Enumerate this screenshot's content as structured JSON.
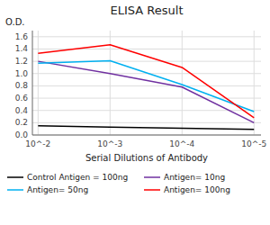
{
  "chart_data": {
    "type": "line",
    "title": "ELISA Result",
    "y_label": "O.D.",
    "x_label": "Serial Dilutions of Antibody",
    "x": [
      0.01,
      0.001,
      0.0001,
      1e-05
    ],
    "series": [
      {
        "name": "Control Antigen = 100ng",
        "color": "#000000",
        "values": [
          0.15,
          0.13,
          0.11,
          0.09
        ]
      },
      {
        "name": "Antigen= 10ng",
        "color": "#7030A0",
        "values": [
          1.2,
          1.0,
          0.78,
          0.2
        ]
      },
      {
        "name": "Antigen= 50ng",
        "color": "#00B0F0",
        "values": [
          1.17,
          1.21,
          0.82,
          0.38
        ]
      },
      {
        "name": "Antigen= 100ng",
        "color": "#FF0000",
        "values": [
          1.33,
          1.47,
          1.1,
          0.28
        ]
      }
    ],
    "log": "x",
    "xlim": [
      0.012,
      8e-06
    ],
    "xticks": [
      {
        "value": 0.01,
        "label": "10^-2"
      },
      {
        "value": 0.001,
        "label": "10^-3"
      },
      {
        "value": 0.0001,
        "label": "10^-4"
      },
      {
        "value": 1e-05,
        "label": "10^-5"
      }
    ],
    "ylim": [
      0,
      1.7
    ],
    "yticks": [
      {
        "value": 0,
        "label": "0.0"
      },
      0.2,
      0.4,
      0.6,
      0.8,
      {
        "value": 1.0,
        "label": "1.0"
      },
      1.2,
      1.4,
      1.6
    ],
    "grid": true,
    "legend": "bottom"
  }
}
